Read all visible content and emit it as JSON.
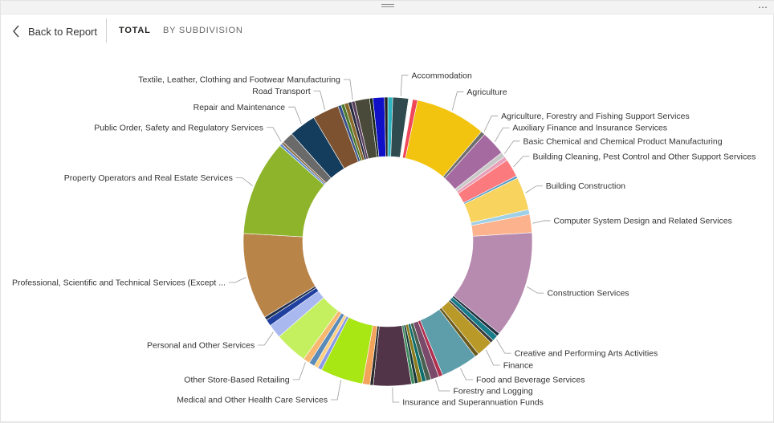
{
  "nav": {
    "back_label": "Back to Report",
    "tabs": [
      {
        "label": "TOTAL",
        "active": true
      },
      {
        "label": "BY SUBDIVISION",
        "active": false
      }
    ]
  },
  "icons": {
    "back": "chevron-left-icon",
    "drag": "drag-handle-icon",
    "more": "more-options-icon"
  },
  "chart_data": {
    "type": "pie",
    "variant": "donut",
    "series": [
      {
        "name": "Accommodation",
        "value": 0.6,
        "color": "#2bb3c0",
        "label_side": "right"
      },
      {
        "name": "Accommodation",
        "value": 1.9,
        "color": "#2f4b4f",
        "label_side": "right",
        "label": true
      },
      {
        "name": "",
        "value": 0.5,
        "color": "#ffffff",
        "label_side": "right"
      },
      {
        "name": "Agriculture",
        "value": 0.6,
        "color": "#f0475a",
        "label_side": "right"
      },
      {
        "name": "Agriculture",
        "value": 8.6,
        "color": "#f2c40f",
        "label_side": "right",
        "label": true
      },
      {
        "name": "Agriculture, Forestry and Fishing Support Services",
        "value": 0.5,
        "color": "#6e6e6e",
        "label_side": "right",
        "label": true
      },
      {
        "name": "Auxiliary Finance and Insurance Services",
        "value": 3.0,
        "color": "#a56aa0",
        "label_side": "right",
        "label": true
      },
      {
        "name": "Basic Chemical and Chemical Product Manufacturing",
        "value": 0.6,
        "color": "#c8c8c8",
        "label_side": "right",
        "label": true
      },
      {
        "name": "",
        "value": 0.5,
        "color": "#e8a0b8",
        "label_side": "right"
      },
      {
        "name": "Building Cleaning, Pest Control and Other Support Services",
        "value": 2.2,
        "color": "#fb7a7e",
        "label_side": "right",
        "label": true
      },
      {
        "name": "",
        "value": 0.3,
        "color": "#5aa0c8",
        "label_side": "right"
      },
      {
        "name": "Building Construction",
        "value": 4.0,
        "color": "#f8d35e",
        "label_side": "right",
        "label": true
      },
      {
        "name": "",
        "value": 0.6,
        "color": "#9fd0e8",
        "label_side": "right"
      },
      {
        "name": "Computer System Design and Related Services",
        "value": 2.2,
        "color": "#fcb28c",
        "label_side": "right",
        "label": true
      },
      {
        "name": "Construction Services",
        "value": 13.0,
        "color": "#b78bb0",
        "label_side": "right",
        "label": true
      },
      {
        "name": "",
        "value": 0.4,
        "color": "#203040",
        "label_side": "right"
      },
      {
        "name": "Creative and Performing Arts Activities",
        "value": 0.7,
        "color": "#177b8a",
        "label_side": "right",
        "label": true
      },
      {
        "name": "",
        "value": 0.4,
        "color": "#3a3a3a",
        "label_side": "right"
      },
      {
        "name": "Finance",
        "value": 2.0,
        "color": "#b99a28",
        "label_side": "right",
        "label": true
      },
      {
        "name": "",
        "value": 0.5,
        "color": "#6a5a20",
        "label_side": "right"
      },
      {
        "name": "Food and Beverage Services",
        "value": 4.5,
        "color": "#5d9eaa",
        "label_side": "right",
        "label": true
      },
      {
        "name": "",
        "value": 0.5,
        "color": "#b03050",
        "label_side": "right"
      },
      {
        "name": "Forestry and Logging",
        "value": 1.0,
        "color": "#7a4a6a",
        "label_side": "right",
        "label": true
      },
      {
        "name": "",
        "value": 0.6,
        "color": "#4a6050",
        "label_side": "right"
      },
      {
        "name": "",
        "value": 0.5,
        "color": "#0f6e6e",
        "label_side": "right"
      },
      {
        "name": "",
        "value": 0.5,
        "color": "#8a7a1a",
        "label_side": "right"
      },
      {
        "name": "",
        "value": 0.4,
        "color": "#1a3a3a",
        "label_side": "right"
      },
      {
        "name": "",
        "value": 0.4,
        "color": "#3a8a5a",
        "label_side": "right"
      },
      {
        "name": "Insurance and Superannuation Funds",
        "value": 4.6,
        "color": "#523448",
        "label_side": "bottom",
        "label": true
      },
      {
        "name": "",
        "value": 0.4,
        "color": "#2a2a2a",
        "label_side": "left"
      },
      {
        "name": "",
        "value": 0.9,
        "color": "#f4a35a",
        "label_side": "left"
      },
      {
        "name": "Medical and Other Health Care Services",
        "value": 5.2,
        "color": "#a8e614",
        "label_side": "left",
        "label": true
      },
      {
        "name": "",
        "value": 0.5,
        "color": "#8a9ae8",
        "label_side": "left"
      },
      {
        "name": "",
        "value": 0.5,
        "color": "#ffd080",
        "label_side": "left"
      },
      {
        "name": "",
        "value": 0.7,
        "color": "#5a8ab8",
        "label_side": "left"
      },
      {
        "name": "Other Store-Based Retailing",
        "value": 0.8,
        "color": "#f8b870",
        "label_side": "left",
        "label": true
      },
      {
        "name": "",
        "value": 4.0,
        "color": "#c4f060",
        "label_side": "left"
      },
      {
        "name": "Personal and Other Services",
        "value": 1.7,
        "color": "#aab8f0",
        "label_side": "left",
        "label": true
      },
      {
        "name": "",
        "value": 0.8,
        "color": "#2040a0",
        "label_side": "left"
      },
      {
        "name": "",
        "value": 0.4,
        "color": "#203050",
        "label_side": "left"
      },
      {
        "name": "Professional, Scientific and Technical Services (Except ...",
        "value": 10.5,
        "color": "#b88448",
        "label_side": "left",
        "label": true
      },
      {
        "name": "Property Operators and Real Estate Services",
        "value": 11.6,
        "color": "#8db42a",
        "label_side": "left",
        "label": true
      },
      {
        "name": "",
        "value": 0.3,
        "color": "#5a8ad0",
        "label_side": "left"
      },
      {
        "name": "Public Order, Safety and Regulatory Services",
        "value": 0.3,
        "color": "#8a7050",
        "label_side": "left",
        "label": true
      },
      {
        "name": "",
        "value": 1.4,
        "color": "#6a6a6a",
        "label_side": "left"
      },
      {
        "name": "Repair and Maintenance",
        "value": 3.3,
        "color": "#143c5c",
        "label_side": "left",
        "label": true
      },
      {
        "name": "Road Transport",
        "value": 3.2,
        "color": "#7d5230",
        "label_side": "left",
        "label": true
      },
      {
        "name": "",
        "value": 0.4,
        "color": "#38508a",
        "label_side": "left"
      },
      {
        "name": "",
        "value": 0.4,
        "color": "#4a7a2a",
        "label_side": "left"
      },
      {
        "name": "",
        "value": 0.5,
        "color": "#8a6a2a",
        "label_side": "left"
      },
      {
        "name": "",
        "value": 0.4,
        "color": "#2a2a40",
        "label_side": "left"
      },
      {
        "name": "Textile, Leather, Clothing and Footwear Manufacturing",
        "value": 0.4,
        "color": "#5a4060",
        "label_side": "left",
        "label": true
      },
      {
        "name": "",
        "value": 1.8,
        "color": "#4a4a3a",
        "label_side": "left"
      },
      {
        "name": "",
        "value": 0.4,
        "color": "#1a2a1a",
        "label_side": "left"
      },
      {
        "name": "",
        "value": 1.4,
        "color": "#1010c8",
        "label_side": "left"
      },
      {
        "name": "",
        "value": 0.4,
        "color": "#202020",
        "label_side": "left"
      }
    ]
  }
}
